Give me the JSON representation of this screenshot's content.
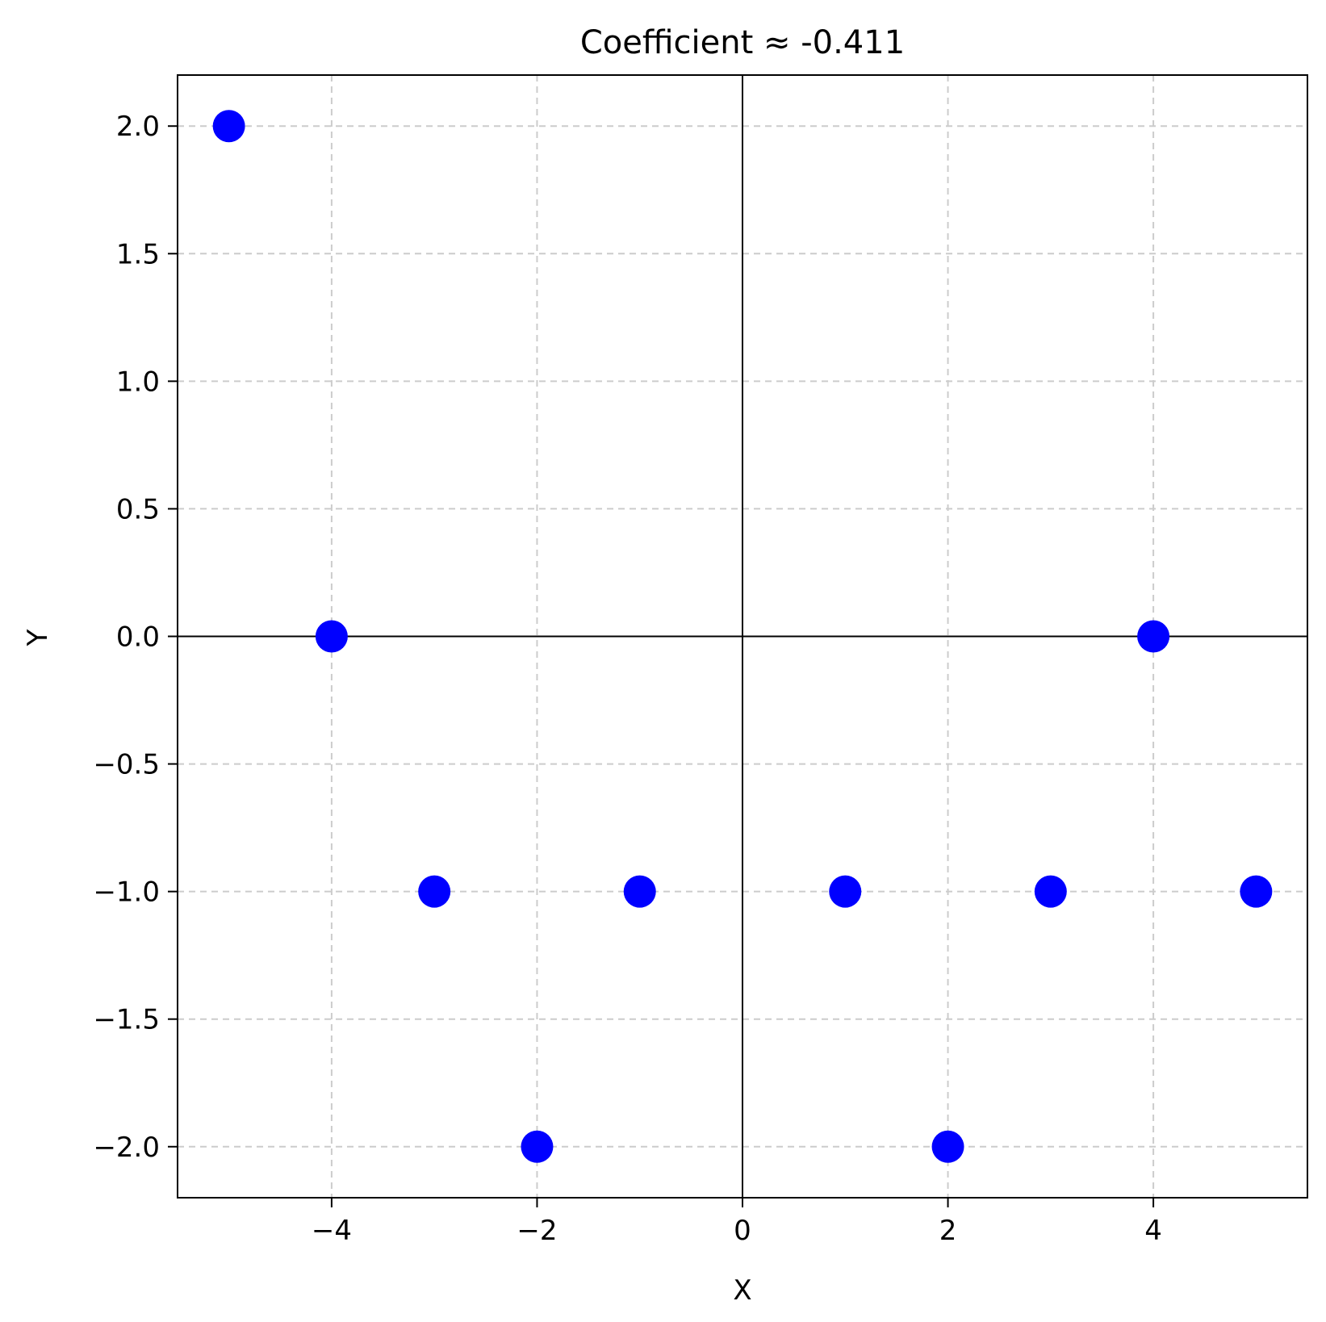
{
  "chart_data": {
    "type": "scatter",
    "title": "Coefficient ≈ -0.411",
    "xlabel": "X",
    "ylabel": "Y",
    "xlim": [
      -5.5,
      5.5
    ],
    "ylim": [
      -2.2,
      2.2
    ],
    "xticks": [
      -4,
      -2,
      0,
      2,
      4
    ],
    "xtick_labels": [
      "−4",
      "−2",
      "0",
      "2",
      "4"
    ],
    "yticks": [
      2.0,
      1.5,
      1.0,
      0.5,
      0.0,
      -0.5,
      -1.0,
      -1.5,
      -2.0
    ],
    "ytick_labels": [
      "2.0",
      "1.5",
      "1.0",
      "0.5",
      "0.0",
      "−0.5",
      "−1.0",
      "−1.5",
      "−2.0"
    ],
    "grid": true,
    "zero_lines": true,
    "marker_color": "#0000ff",
    "points": [
      {
        "x": -5,
        "y": 2
      },
      {
        "x": -4,
        "y": 0
      },
      {
        "x": -3,
        "y": -1
      },
      {
        "x": -2,
        "y": -2
      },
      {
        "x": -1,
        "y": -1
      },
      {
        "x": 1,
        "y": -1
      },
      {
        "x": 2,
        "y": -2
      },
      {
        "x": 3,
        "y": -1
      },
      {
        "x": 4,
        "y": 0
      },
      {
        "x": 5,
        "y": -1
      }
    ]
  }
}
